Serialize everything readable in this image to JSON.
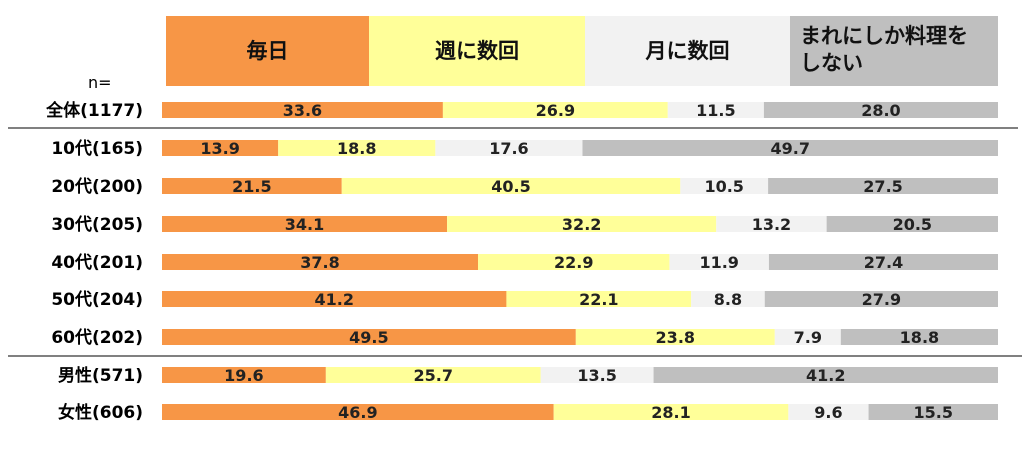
{
  "chart_data": {
    "type": "bar",
    "orientation": "horizontal",
    "stacked": "100%",
    "n_label": "n=",
    "categories": [
      "全体(1177)",
      "10代(165)",
      "20代(200)",
      "30代(205)",
      "40代(201)",
      "50代(204)",
      "60代(202)",
      "男性(571)",
      "女性(606)"
    ],
    "series": [
      {
        "name": "毎日",
        "color": "#f79646",
        "values": [
          33.6,
          13.9,
          21.5,
          34.1,
          37.8,
          41.2,
          49.5,
          19.6,
          46.9
        ]
      },
      {
        "name": "週に数回",
        "color": "#ffff99",
        "values": [
          26.9,
          18.8,
          40.5,
          32.2,
          22.9,
          22.1,
          23.8,
          25.7,
          28.1
        ]
      },
      {
        "name": "月に数回",
        "color": "#f2f2f2",
        "values": [
          11.5,
          17.6,
          10.5,
          13.2,
          11.9,
          8.8,
          7.9,
          13.5,
          9.6
        ]
      },
      {
        "name": "まれにしか料理をしない",
        "color": "#bfbfbf",
        "values": [
          28.0,
          49.7,
          27.5,
          20.5,
          27.4,
          27.9,
          18.8,
          41.2,
          15.5
        ]
      }
    ],
    "legend": "top",
    "grid": false,
    "xlim": [
      0,
      100
    ]
  }
}
